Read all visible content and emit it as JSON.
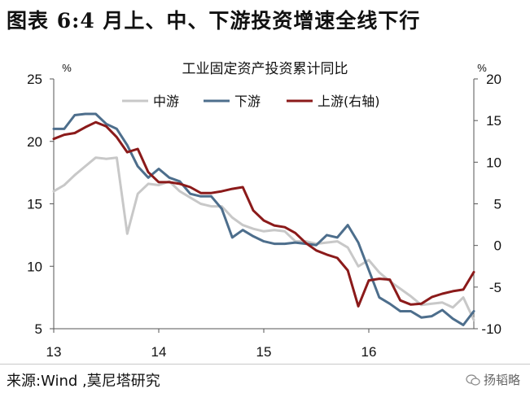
{
  "heading": "图表 6:4 月上、中、下游投资增速全线下行",
  "source": "来源:Wind ,莫尼塔研究",
  "watermark": "扬韬略",
  "chart_data": {
    "type": "line",
    "title": "工业固定资产投资累计同比",
    "left_axis": {
      "unit": "%",
      "ticks": [
        5,
        10,
        15,
        20,
        25
      ],
      "ylim": [
        5,
        25
      ]
    },
    "right_axis": {
      "unit": "%",
      "ticks": [
        -10,
        -5,
        0,
        5,
        10,
        15,
        20
      ],
      "ylim": [
        -10,
        20
      ]
    },
    "x_ticks": [
      "13",
      "14",
      "15",
      "16"
    ],
    "x_domain": [
      0,
      40
    ],
    "x_tick_positions": [
      0,
      10,
      20,
      30
    ],
    "legend": [
      "中游",
      "下游",
      "上游(右轴)"
    ],
    "series": [
      {
        "name": "中游",
        "axis": "left",
        "color": "#c8c8c8",
        "x": [
          0,
          1,
          2,
          3,
          4,
          5,
          6,
          7,
          8,
          9,
          10,
          11,
          12,
          13,
          14,
          15,
          16,
          17,
          18,
          19,
          20,
          21,
          22,
          23,
          24,
          25,
          26,
          27,
          28,
          29,
          30,
          31,
          32,
          33,
          34,
          35,
          36,
          37,
          38,
          39,
          40
        ],
        "y": [
          16.0,
          16.5,
          17.3,
          18.0,
          18.7,
          18.6,
          18.7,
          12.6,
          15.8,
          16.6,
          16.5,
          16.8,
          16.0,
          15.5,
          15.0,
          14.8,
          14.8,
          13.9,
          13.3,
          13.0,
          12.8,
          12.9,
          12.8,
          12.0,
          12.0,
          11.8,
          11.9,
          12.0,
          11.5,
          10.0,
          10.5,
          9.5,
          8.8,
          8.2,
          7.6,
          6.9,
          7.0,
          7.1,
          6.7,
          7.5,
          5.7
        ]
      },
      {
        "name": "下游",
        "axis": "left",
        "color": "#4d6e8c",
        "x": [
          0,
          1,
          2,
          3,
          4,
          5,
          6,
          7,
          8,
          9,
          10,
          11,
          12,
          13,
          14,
          15,
          16,
          17,
          18,
          19,
          20,
          21,
          22,
          23,
          24,
          25,
          26,
          27,
          28,
          29,
          30,
          31,
          32,
          33,
          34,
          35,
          36,
          37,
          38,
          39,
          40
        ],
        "y": [
          21.0,
          21.0,
          22.1,
          22.2,
          22.2,
          21.4,
          21.0,
          19.7,
          18.0,
          17.1,
          17.8,
          17.1,
          16.8,
          15.8,
          15.6,
          15.6,
          14.6,
          12.3,
          12.9,
          12.4,
          12.0,
          11.8,
          11.8,
          11.9,
          11.8,
          11.7,
          12.5,
          12.3,
          13.3,
          11.9,
          9.7,
          7.5,
          7.0,
          6.4,
          6.4,
          5.9,
          6.0,
          6.5,
          5.8,
          5.3,
          6.4
        ]
      },
      {
        "name": "上游(右轴)",
        "axis": "right",
        "color": "#8b1a1a",
        "x": [
          0,
          1,
          2,
          3,
          4,
          5,
          6,
          7,
          8,
          9,
          10,
          11,
          12,
          13,
          14,
          15,
          16,
          17,
          18,
          19,
          20,
          21,
          22,
          23,
          24,
          25,
          26,
          27,
          28,
          29,
          30,
          31,
          32,
          33,
          34,
          35,
          36,
          37,
          38,
          39,
          40
        ],
        "y": [
          12.8,
          13.3,
          13.5,
          14.2,
          14.8,
          14.3,
          13.0,
          11.2,
          11.6,
          8.8,
          7.6,
          7.6,
          7.4,
          7.0,
          6.3,
          6.3,
          6.5,
          6.8,
          7.0,
          4.2,
          3.0,
          2.4,
          2.2,
          1.5,
          0.3,
          -0.6,
          -1.1,
          -1.5,
          -3.0,
          -7.3,
          -4.2,
          -4.0,
          -4.1,
          -6.6,
          -7.1,
          -7.0,
          -6.2,
          -5.8,
          -5.5,
          -5.3,
          -3.2
        ]
      }
    ]
  }
}
